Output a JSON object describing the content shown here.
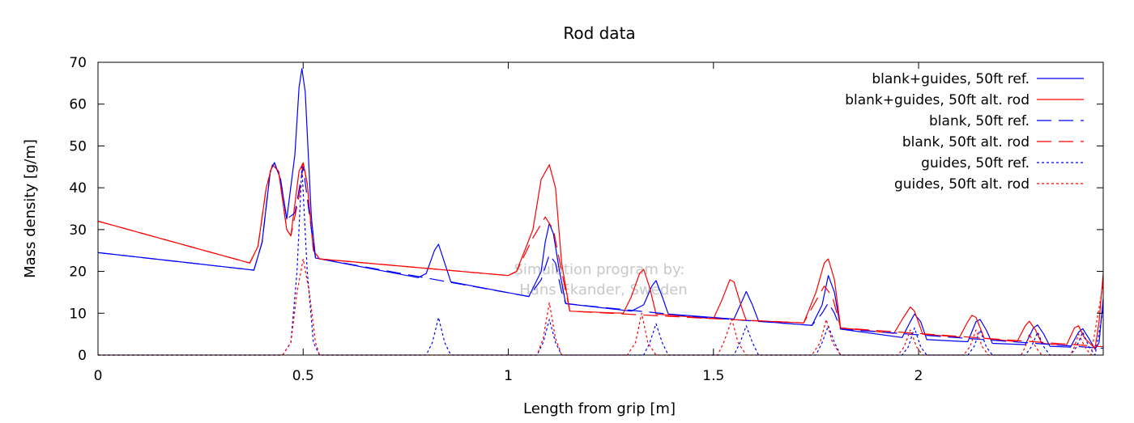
{
  "chart_data": {
    "type": "line",
    "title": "Rod data",
    "xlabel": "Length from grip [m]",
    "ylabel": "Mass density [g/m]",
    "xlim": [
      0,
      2.45
    ],
    "ylim": [
      0,
      70
    ],
    "x_ticks": [
      0,
      0.5,
      1,
      1.5,
      2
    ],
    "x_tick_labels": [
      "0",
      "0.5",
      "1",
      "1.5",
      "2"
    ],
    "y_ticks": [
      0,
      10,
      20,
      30,
      40,
      50,
      60,
      70
    ],
    "y_tick_labels": [
      "0",
      "10",
      "20",
      "30",
      "40",
      "50",
      "60",
      "70"
    ],
    "grid": false,
    "legend_position": "top-right",
    "watermark": [
      "Simulation program by:",
      "Hans Ekander, Sweden"
    ],
    "series": [
      {
        "name": "blank+guides, 50ft ref.",
        "color": "#0000ff",
        "style": "solid",
        "points": [
          [
            0,
            24.5
          ],
          [
            0.38,
            20.3
          ],
          [
            0.4,
            27
          ],
          [
            0.42,
            44
          ],
          [
            0.43,
            46
          ],
          [
            0.445,
            42
          ],
          [
            0.46,
            32.5
          ],
          [
            0.48,
            48
          ],
          [
            0.49,
            64
          ],
          [
            0.497,
            68.5
          ],
          [
            0.505,
            63
          ],
          [
            0.52,
            33
          ],
          [
            0.53,
            23.2
          ],
          [
            0.78,
            18.5
          ],
          [
            0.8,
            19.5
          ],
          [
            0.82,
            25
          ],
          [
            0.83,
            26.5
          ],
          [
            0.845,
            22
          ],
          [
            0.86,
            17.5
          ],
          [
            1.05,
            14
          ],
          [
            1.08,
            20
          ],
          [
            1.09,
            27
          ],
          [
            1.1,
            31.5
          ],
          [
            1.11,
            29
          ],
          [
            1.125,
            20
          ],
          [
            1.14,
            12.3
          ],
          [
            1.3,
            10.5
          ],
          [
            1.33,
            12
          ],
          [
            1.35,
            16.5
          ],
          [
            1.36,
            17.8
          ],
          [
            1.375,
            14
          ],
          [
            1.39,
            9.8
          ],
          [
            1.55,
            8.6
          ],
          [
            1.57,
            13
          ],
          [
            1.58,
            15.2
          ],
          [
            1.595,
            12
          ],
          [
            1.61,
            8.1
          ],
          [
            1.74,
            7.1
          ],
          [
            1.765,
            12
          ],
          [
            1.78,
            19
          ],
          [
            1.795,
            15
          ],
          [
            1.81,
            6.2
          ],
          [
            1.96,
            4.2
          ],
          [
            1.98,
            8
          ],
          [
            1.99,
            9.8
          ],
          [
            2.005,
            8
          ],
          [
            2.02,
            3.7
          ],
          [
            2.12,
            3.2
          ],
          [
            2.14,
            8
          ],
          [
            2.15,
            8.5
          ],
          [
            2.165,
            6
          ],
          [
            2.18,
            2.8
          ],
          [
            2.26,
            2.5
          ],
          [
            2.28,
            6.5
          ],
          [
            2.29,
            7.2
          ],
          [
            2.305,
            5
          ],
          [
            2.32,
            2.1
          ],
          [
            2.37,
            1.9
          ],
          [
            2.39,
            5.5
          ],
          [
            2.4,
            6.3
          ],
          [
            2.415,
            4
          ],
          [
            2.43,
            1.4
          ],
          [
            2.44,
            3
          ],
          [
            2.45,
            13.5
          ]
        ]
      },
      {
        "name": "blank+guides, 50ft alt. rod",
        "color": "#ff0000",
        "style": "solid",
        "points": [
          [
            0,
            32
          ],
          [
            0.37,
            22
          ],
          [
            0.39,
            26
          ],
          [
            0.41,
            40
          ],
          [
            0.425,
            45.5
          ],
          [
            0.44,
            44
          ],
          [
            0.46,
            30
          ],
          [
            0.47,
            28.5
          ],
          [
            0.49,
            44
          ],
          [
            0.5,
            46
          ],
          [
            0.51,
            41
          ],
          [
            0.525,
            25
          ],
          [
            0.54,
            23
          ],
          [
            1.0,
            19
          ],
          [
            1.02,
            20
          ],
          [
            1.06,
            30
          ],
          [
            1.08,
            42
          ],
          [
            1.1,
            45.5
          ],
          [
            1.115,
            40
          ],
          [
            1.13,
            22
          ],
          [
            1.15,
            10.5
          ],
          [
            1.28,
            10
          ],
          [
            1.3,
            14
          ],
          [
            1.32,
            19.5
          ],
          [
            1.33,
            20.5
          ],
          [
            1.345,
            16
          ],
          [
            1.36,
            9.8
          ],
          [
            1.5,
            8.7
          ],
          [
            1.52,
            13
          ],
          [
            1.54,
            18
          ],
          [
            1.55,
            17.5
          ],
          [
            1.57,
            11
          ],
          [
            1.58,
            8.3
          ],
          [
            1.72,
            7.7
          ],
          [
            1.75,
            15
          ],
          [
            1.77,
            22
          ],
          [
            1.78,
            23
          ],
          [
            1.795,
            18
          ],
          [
            1.81,
            6.5
          ],
          [
            1.94,
            5.2
          ],
          [
            1.96,
            8.5
          ],
          [
            1.98,
            11.5
          ],
          [
            1.99,
            10.5
          ],
          [
            2.01,
            5
          ],
          [
            2.1,
            4.3
          ],
          [
            2.12,
            8
          ],
          [
            2.13,
            9.5
          ],
          [
            2.14,
            9
          ],
          [
            2.16,
            4
          ],
          [
            2.24,
            3.2
          ],
          [
            2.26,
            7
          ],
          [
            2.27,
            8.1
          ],
          [
            2.285,
            6
          ],
          [
            2.3,
            2.8
          ],
          [
            2.36,
            2.3
          ],
          [
            2.38,
            6.5
          ],
          [
            2.39,
            7
          ],
          [
            2.405,
            4
          ],
          [
            2.43,
            1.6
          ],
          [
            2.44,
            8
          ],
          [
            2.45,
            19.5
          ]
        ]
      },
      {
        "name": "blank, 50ft ref.",
        "color": "#0000ff",
        "style": "dashed",
        "points": [
          [
            0,
            24.5
          ],
          [
            0.38,
            20.3
          ],
          [
            0.4,
            27
          ],
          [
            0.42,
            44
          ],
          [
            0.43,
            46
          ],
          [
            0.445,
            42
          ],
          [
            0.46,
            32.5
          ],
          [
            0.48,
            34
          ],
          [
            0.5,
            45
          ],
          [
            0.52,
            30
          ],
          [
            0.53,
            23.2
          ],
          [
            1.05,
            14
          ],
          [
            1.08,
            18
          ],
          [
            1.1,
            24
          ],
          [
            1.115,
            22
          ],
          [
            1.13,
            15
          ],
          [
            1.14,
            12.3
          ],
          [
            1.45,
            9.2
          ],
          [
            1.74,
            7.1
          ],
          [
            1.765,
            10
          ],
          [
            1.78,
            12.5
          ],
          [
            1.795,
            10
          ],
          [
            1.81,
            6.2
          ],
          [
            2.45,
            1.6
          ]
        ]
      },
      {
        "name": "blank, 50ft alt. rod",
        "color": "#ff0000",
        "style": "dashed",
        "points": [
          [
            0,
            32
          ],
          [
            0.37,
            22
          ],
          [
            0.39,
            26
          ],
          [
            0.41,
            40
          ],
          [
            0.425,
            45.5
          ],
          [
            0.44,
            44
          ],
          [
            0.46,
            30
          ],
          [
            0.47,
            28.5
          ],
          [
            0.49,
            38
          ],
          [
            0.5,
            46
          ],
          [
            0.51,
            41
          ],
          [
            0.525,
            25
          ],
          [
            0.54,
            23
          ],
          [
            1.0,
            19
          ],
          [
            1.02,
            20
          ],
          [
            1.06,
            28
          ],
          [
            1.09,
            33
          ],
          [
            1.11,
            30
          ],
          [
            1.13,
            20
          ],
          [
            1.15,
            10.5
          ],
          [
            1.5,
            8.7
          ],
          [
            1.72,
            7.7
          ],
          [
            1.75,
            13
          ],
          [
            1.77,
            16.5
          ],
          [
            1.79,
            14
          ],
          [
            1.81,
            6.5
          ],
          [
            2.45,
            2
          ]
        ]
      },
      {
        "name": "guides, 50ft ref.",
        "color": "#0000ff",
        "style": "dotted",
        "points": [
          [
            0,
            0
          ],
          [
            0.45,
            0
          ],
          [
            0.47,
            3
          ],
          [
            0.485,
            20
          ],
          [
            0.497,
            45
          ],
          [
            0.51,
            20
          ],
          [
            0.525,
            3
          ],
          [
            0.54,
            0
          ],
          [
            0.8,
            0
          ],
          [
            0.815,
            3
          ],
          [
            0.83,
            9
          ],
          [
            0.845,
            3
          ],
          [
            0.86,
            0
          ],
          [
            1.07,
            0
          ],
          [
            1.085,
            3
          ],
          [
            1.1,
            8.5
          ],
          [
            1.115,
            3
          ],
          [
            1.13,
            0
          ],
          [
            1.33,
            0
          ],
          [
            1.345,
            3
          ],
          [
            1.36,
            7.5
          ],
          [
            1.375,
            3
          ],
          [
            1.39,
            0
          ],
          [
            1.55,
            0
          ],
          [
            1.565,
            3
          ],
          [
            1.58,
            7
          ],
          [
            1.595,
            3
          ],
          [
            1.61,
            0
          ],
          [
            1.75,
            0
          ],
          [
            1.765,
            3
          ],
          [
            1.78,
            7
          ],
          [
            1.795,
            3
          ],
          [
            1.81,
            0
          ],
          [
            1.96,
            0
          ],
          [
            1.975,
            2
          ],
          [
            1.99,
            6.5
          ],
          [
            2.005,
            2
          ],
          [
            2.02,
            0
          ],
          [
            2.12,
            0
          ],
          [
            2.135,
            2
          ],
          [
            2.15,
            6
          ],
          [
            2.165,
            2
          ],
          [
            2.18,
            0
          ],
          [
            2.26,
            0
          ],
          [
            2.275,
            2
          ],
          [
            2.29,
            5.5
          ],
          [
            2.305,
            2
          ],
          [
            2.32,
            0
          ],
          [
            2.37,
            0
          ],
          [
            2.385,
            2
          ],
          [
            2.4,
            5.5
          ],
          [
            2.415,
            2
          ],
          [
            2.43,
            0
          ],
          [
            2.45,
            11
          ]
        ]
      },
      {
        "name": "guides, 50ft alt. rod",
        "color": "#ff0000",
        "style": "dotted",
        "points": [
          [
            0,
            0
          ],
          [
            0.45,
            0
          ],
          [
            0.47,
            3
          ],
          [
            0.485,
            15
          ],
          [
            0.5,
            23
          ],
          [
            0.515,
            15
          ],
          [
            0.53,
            3
          ],
          [
            0.54,
            0
          ],
          [
            1.07,
            0
          ],
          [
            1.085,
            4
          ],
          [
            1.1,
            12.5
          ],
          [
            1.115,
            4
          ],
          [
            1.13,
            0
          ],
          [
            1.29,
            0
          ],
          [
            1.31,
            3
          ],
          [
            1.325,
            10
          ],
          [
            1.34,
            3
          ],
          [
            1.36,
            0
          ],
          [
            1.51,
            0
          ],
          [
            1.525,
            3
          ],
          [
            1.545,
            8.5
          ],
          [
            1.56,
            3
          ],
          [
            1.58,
            0
          ],
          [
            1.74,
            0
          ],
          [
            1.76,
            3
          ],
          [
            1.775,
            8.5
          ],
          [
            1.79,
            3
          ],
          [
            1.81,
            0
          ],
          [
            1.95,
            0
          ],
          [
            1.965,
            2
          ],
          [
            1.98,
            6
          ],
          [
            1.995,
            2
          ],
          [
            2.01,
            0
          ],
          [
            2.11,
            0
          ],
          [
            2.125,
            2
          ],
          [
            2.14,
            6
          ],
          [
            2.155,
            2
          ],
          [
            2.17,
            0
          ],
          [
            2.25,
            0
          ],
          [
            2.26,
            2
          ],
          [
            2.27,
            5
          ],
          [
            2.285,
            2
          ],
          [
            2.3,
            0
          ],
          [
            2.37,
            0
          ],
          [
            2.38,
            2
          ],
          [
            2.39,
            5
          ],
          [
            2.405,
            2
          ],
          [
            2.42,
            0
          ],
          [
            2.45,
            17
          ]
        ]
      }
    ]
  }
}
